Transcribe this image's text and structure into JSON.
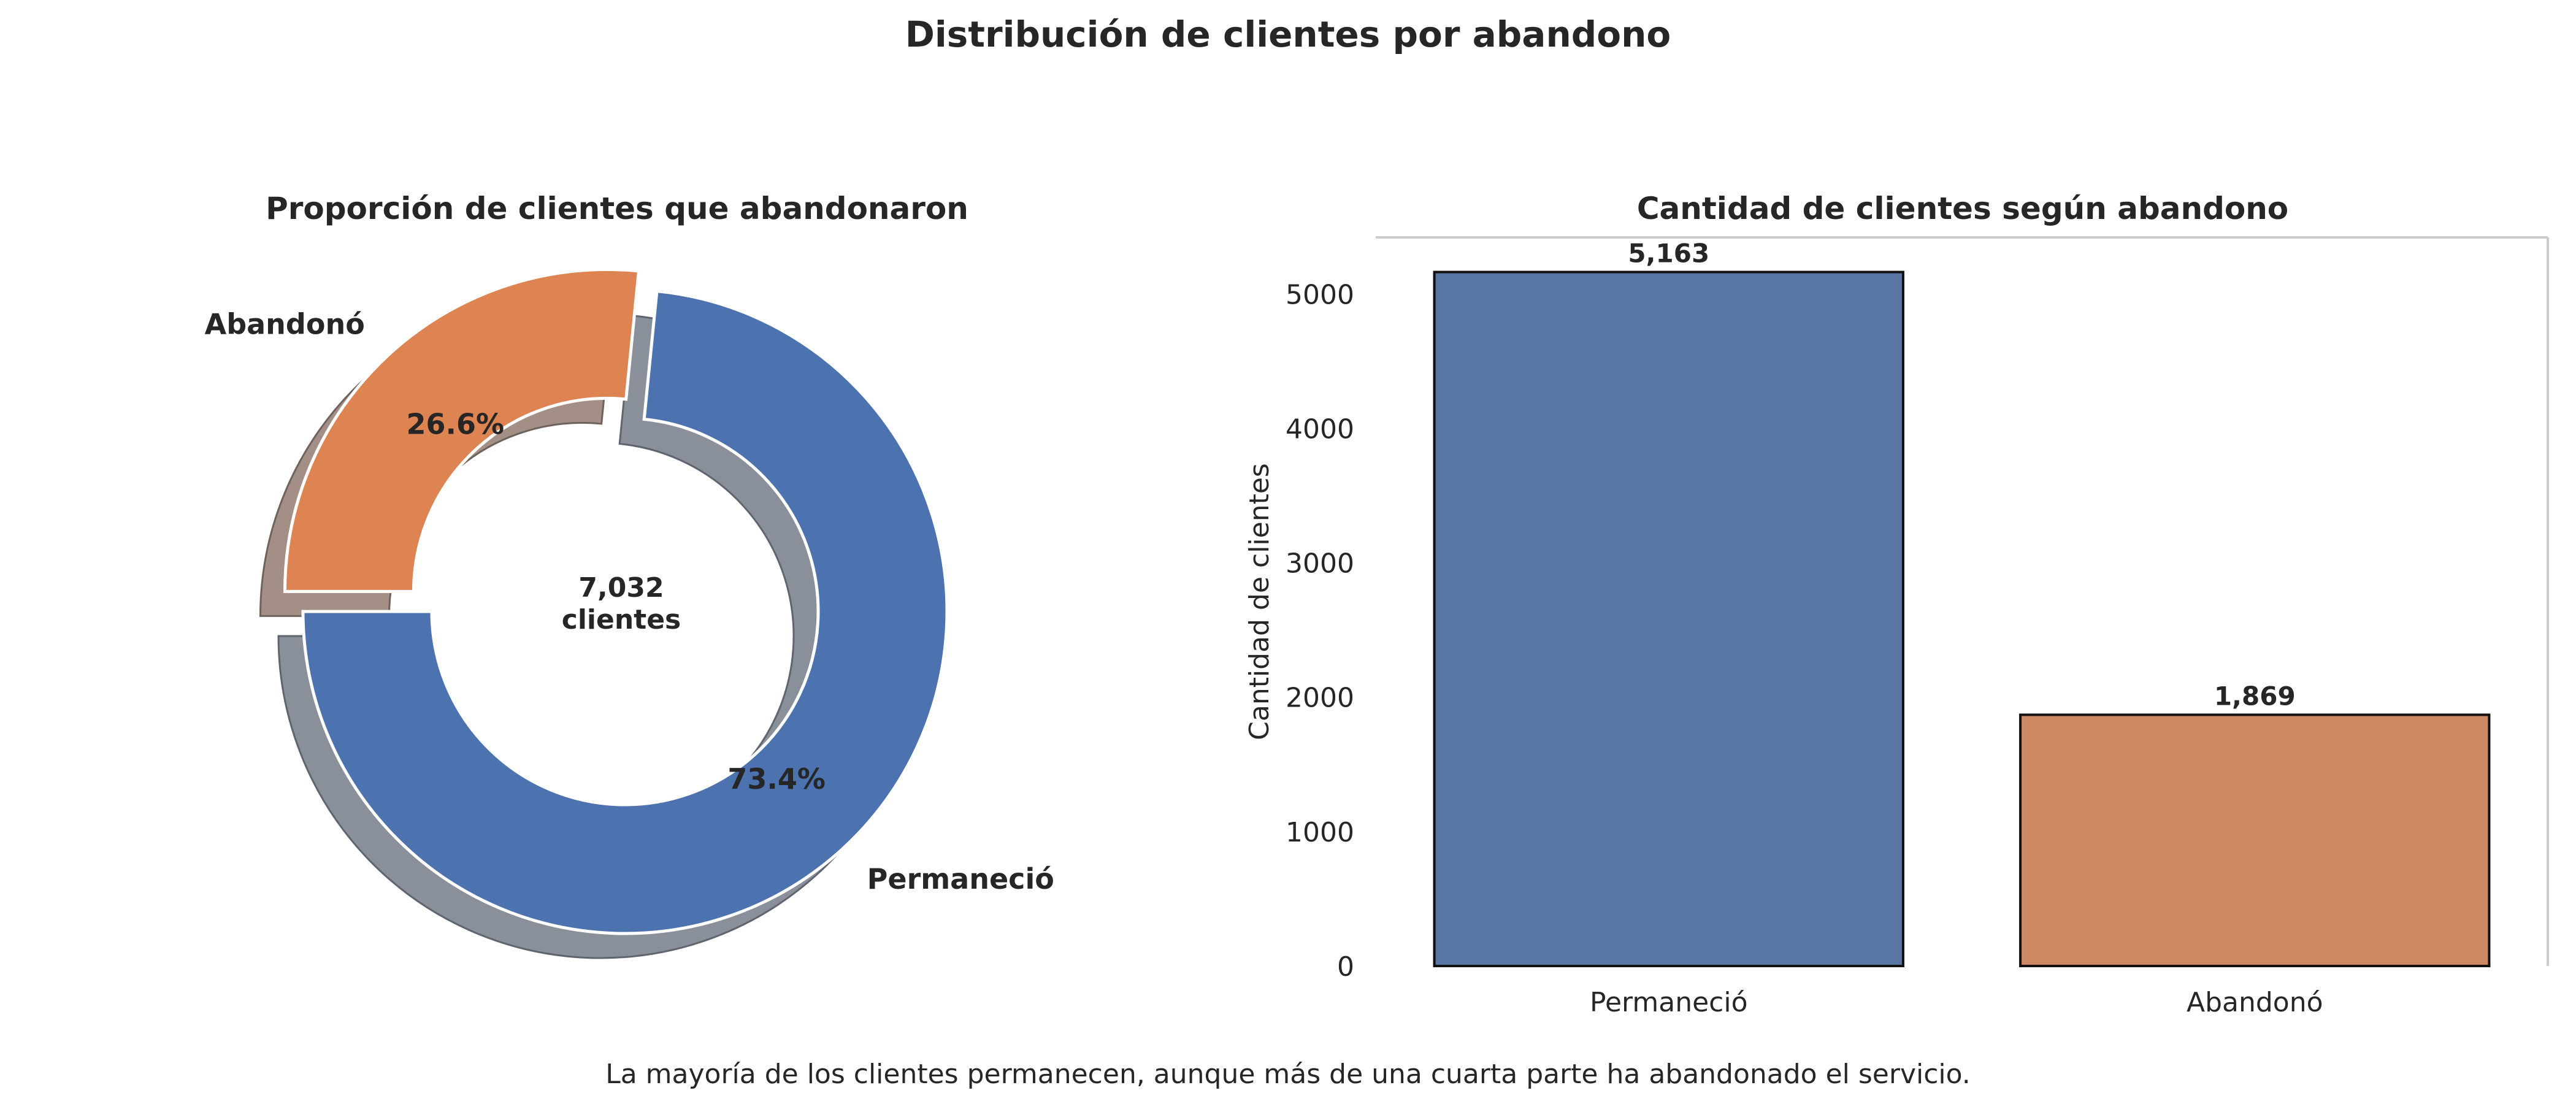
{
  "figure": {
    "title": "Distribución de clientes por abandono",
    "caption": "La mayoría de los clientes permanecen, aunque más de una cuarta parte ha abandonado el servicio."
  },
  "chart_data": [
    {
      "type": "pie",
      "subtype": "donut",
      "title": "Proporción de clientes que abandonaron",
      "labels": [
        "Permaneció",
        "Abandonó"
      ],
      "values": [
        5163,
        1869
      ],
      "percent_labels": [
        "73.4%",
        "26.6%"
      ],
      "exploded": "Abandonó",
      "shadow": true,
      "center_value": "7,032",
      "center_label": "clientes",
      "colors": [
        "#4c72b0",
        "#dd8452"
      ]
    },
    {
      "type": "bar",
      "title": "Cantidad de clientes según abandono",
      "categories": [
        "Permaneció",
        "Abandonó"
      ],
      "values": [
        5163,
        1869
      ],
      "value_labels": [
        "5,163",
        "1,869"
      ],
      "xlabel": "",
      "ylabel": "Cantidad de clientes",
      "ylim": [
        0,
        5421
      ],
      "yticks": [
        0,
        1000,
        2000,
        3000,
        4000,
        5000
      ],
      "grid": false,
      "colors": [
        "#5975a4",
        "#cc8963"
      ]
    }
  ]
}
